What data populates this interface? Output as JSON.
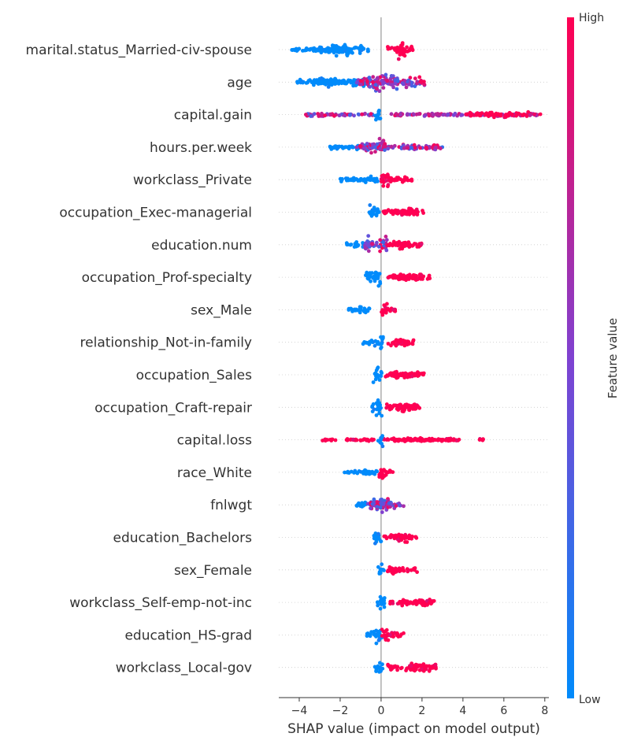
{
  "chart_data": {
    "type": "scatter",
    "subtype": "shap_beeswarm_summary",
    "title": "",
    "xlabel": "SHAP value (impact on model output)",
    "ylabel": "",
    "xlim": [
      -5,
      8.2
    ],
    "xticks": [
      -4,
      -2,
      0,
      2,
      4,
      6,
      8
    ],
    "xtick_labels": [
      "−4",
      "−2",
      "0",
      "2",
      "4",
      "6",
      "8"
    ],
    "grid": false,
    "colorbar": {
      "title": "Feature value",
      "high_label": "High",
      "low_label": "Low",
      "low_color": "#008bfb",
      "mid_color": "#7f42d1",
      "high_color": "#ff0052"
    },
    "features": [
      {
        "name": "marital.status_Married-civ-spouse",
        "segments": [
          {
            "from": -4.4,
            "to": -1.4,
            "mode": "low",
            "thick": 0.2
          },
          {
            "from": -3.0,
            "to": -0.6,
            "mode": "low",
            "thick": 0.42
          },
          {
            "from": -2.2,
            "to": -1.6,
            "mode": "low",
            "thick": 0.7
          },
          {
            "from": 0.3,
            "to": 1.6,
            "mode": "high",
            "thick": 0.3
          },
          {
            "from": 0.75,
            "to": 1.2,
            "mode": "high",
            "thick": 0.85
          }
        ]
      },
      {
        "name": "age",
        "segments": [
          {
            "from": -4.1,
            "to": -1.6,
            "mode": "low",
            "thick": 0.22
          },
          {
            "from": -3.3,
            "to": -0.6,
            "mode": "low",
            "thick": 0.45
          },
          {
            "from": -1.2,
            "to": -0.1,
            "mode": "mix",
            "thick": 0.55
          },
          {
            "from": -0.4,
            "to": 0.8,
            "mode": "mix",
            "thick": 0.9
          },
          {
            "from": 0.4,
            "to": 2.2,
            "mode": "mix",
            "thick": 0.45
          }
        ]
      },
      {
        "name": "capital.gain",
        "segments": [
          {
            "from": -3.7,
            "to": -0.4,
            "mode": "mix",
            "thick": 0.15
          },
          {
            "from": -0.3,
            "to": 0.0,
            "mode": "low",
            "thick": 0.85
          },
          {
            "from": 0.3,
            "to": 7.8,
            "mode": "mixhigh",
            "thick": 0.15
          },
          {
            "from": 4.2,
            "to": 7.2,
            "mode": "high",
            "thick": 0.24
          }
        ]
      },
      {
        "name": "hours.per.week",
        "segments": [
          {
            "from": -2.5,
            "to": -0.5,
            "mode": "low",
            "thick": 0.22
          },
          {
            "from": -1.2,
            "to": 0.2,
            "mode": "mix",
            "thick": 0.4
          },
          {
            "from": -0.5,
            "to": 0.2,
            "mode": "mix",
            "thick": 0.75
          },
          {
            "from": 0.2,
            "to": 3.0,
            "mode": "mix",
            "thick": 0.3
          }
        ]
      },
      {
        "name": "workclass_Private",
        "segments": [
          {
            "from": -2.0,
            "to": -0.3,
            "mode": "low",
            "thick": 0.22
          },
          {
            "from": -0.8,
            "to": -0.1,
            "mode": "low",
            "thick": 0.32
          },
          {
            "from": 0.0,
            "to": 0.5,
            "mode": "high",
            "thick": 0.8
          },
          {
            "from": 0.3,
            "to": 1.5,
            "mode": "high",
            "thick": 0.22
          }
        ]
      },
      {
        "name": "occupation_Exec-managerial",
        "segments": [
          {
            "from": -0.6,
            "to": -0.1,
            "mode": "low",
            "thick": 0.72
          },
          {
            "from": 0.1,
            "to": 2.1,
            "mode": "high",
            "thick": 0.25
          },
          {
            "from": 0.8,
            "to": 1.8,
            "mode": "high",
            "thick": 0.38
          }
        ]
      },
      {
        "name": "education.num",
        "segments": [
          {
            "from": -1.7,
            "to": -0.6,
            "mode": "low",
            "thick": 0.25
          },
          {
            "from": -0.8,
            "to": 0.3,
            "mode": "mix",
            "thick": 0.85
          },
          {
            "from": 0.3,
            "to": 2.0,
            "mode": "high",
            "thick": 0.3
          },
          {
            "from": 0.8,
            "to": 1.5,
            "mode": "high",
            "thick": 0.4
          }
        ]
      },
      {
        "name": "occupation_Prof-specialty",
        "segments": [
          {
            "from": -0.75,
            "to": -0.1,
            "mode": "low",
            "thick": 0.55
          },
          {
            "from": -0.35,
            "to": 0.0,
            "mode": "low",
            "thick": 0.85
          },
          {
            "from": 0.3,
            "to": 2.4,
            "mode": "high",
            "thick": 0.28
          },
          {
            "from": 0.8,
            "to": 2.0,
            "mode": "high",
            "thick": 0.42
          }
        ]
      },
      {
        "name": "sex_Male",
        "segments": [
          {
            "from": -1.6,
            "to": -0.5,
            "mode": "low",
            "thick": 0.2
          },
          {
            "from": -1.1,
            "to": -0.6,
            "mode": "low",
            "thick": 0.3
          },
          {
            "from": 0.0,
            "to": 0.35,
            "mode": "high",
            "thick": 0.85
          },
          {
            "from": 0.3,
            "to": 0.75,
            "mode": "high",
            "thick": 0.28
          }
        ]
      },
      {
        "name": "relationship_Not-in-family",
        "segments": [
          {
            "from": -0.9,
            "to": -0.1,
            "mode": "low",
            "thick": 0.3
          },
          {
            "from": -0.2,
            "to": 0.1,
            "mode": "low",
            "thick": 0.8
          },
          {
            "from": 0.25,
            "to": 1.6,
            "mode": "high",
            "thick": 0.28
          },
          {
            "from": 0.7,
            "to": 1.3,
            "mode": "high",
            "thick": 0.4
          }
        ]
      },
      {
        "name": "occupation_Sales",
        "segments": [
          {
            "from": -0.4,
            "to": 0.05,
            "mode": "low",
            "thick": 0.75
          },
          {
            "from": 0.2,
            "to": 2.1,
            "mode": "high",
            "thick": 0.25
          },
          {
            "from": 0.6,
            "to": 1.8,
            "mode": "high",
            "thick": 0.42
          }
        ]
      },
      {
        "name": "occupation_Craft-repair",
        "segments": [
          {
            "from": -0.45,
            "to": 0.05,
            "mode": "low",
            "thick": 0.8
          },
          {
            "from": 0.25,
            "to": 2.0,
            "mode": "high",
            "thick": 0.25
          },
          {
            "from": 0.7,
            "to": 1.7,
            "mode": "high",
            "thick": 0.42
          }
        ]
      },
      {
        "name": "capital.loss",
        "segments": [
          {
            "from": -2.9,
            "to": 3.9,
            "mode": "high",
            "thick": 0.12
          },
          {
            "from": 0.6,
            "to": 3.7,
            "mode": "high",
            "thick": 0.18
          },
          {
            "from": -0.15,
            "to": 0.08,
            "mode": "low",
            "thick": 0.85
          },
          {
            "from": 4.75,
            "to": 4.85,
            "mode": "high",
            "thick": 0.12
          },
          {
            "from": 4.95,
            "to": 5.05,
            "mode": "high",
            "thick": 0.12
          }
        ]
      },
      {
        "name": "race_White",
        "segments": [
          {
            "from": -1.8,
            "to": -0.2,
            "mode": "low",
            "thick": 0.2
          },
          {
            "from": -0.9,
            "to": -0.2,
            "mode": "low",
            "thick": 0.28
          },
          {
            "from": -0.1,
            "to": 0.25,
            "mode": "high",
            "thick": 0.85
          },
          {
            "from": 0.2,
            "to": 0.6,
            "mode": "high",
            "thick": 0.25
          }
        ]
      },
      {
        "name": "fnlwgt",
        "segments": [
          {
            "from": -1.3,
            "to": -0.2,
            "mode": "low",
            "thick": 0.3
          },
          {
            "from": -0.7,
            "to": 0.2,
            "mode": "mix",
            "thick": 0.62
          },
          {
            "from": -0.2,
            "to": 0.35,
            "mode": "mix",
            "thick": 0.88
          },
          {
            "from": 0.2,
            "to": 1.1,
            "mode": "mix",
            "thick": 0.3
          }
        ]
      },
      {
        "name": "education_Bachelors",
        "segments": [
          {
            "from": -0.4,
            "to": 0.05,
            "mode": "low",
            "thick": 0.72
          },
          {
            "from": 0.1,
            "to": 1.8,
            "mode": "high",
            "thick": 0.25
          },
          {
            "from": 0.6,
            "to": 1.4,
            "mode": "high",
            "thick": 0.4
          }
        ]
      },
      {
        "name": "sex_Female",
        "segments": [
          {
            "from": -0.15,
            "to": 0.15,
            "mode": "low",
            "thick": 0.82
          },
          {
            "from": 0.25,
            "to": 1.8,
            "mode": "high",
            "thick": 0.25
          },
          {
            "from": 0.35,
            "to": 0.8,
            "mode": "high",
            "thick": 0.45
          }
        ]
      },
      {
        "name": "workclass_Self-emp-not-inc",
        "segments": [
          {
            "from": -0.2,
            "to": 0.3,
            "mode": "low",
            "thick": 0.82
          },
          {
            "from": 0.4,
            "to": 2.6,
            "mode": "high",
            "thick": 0.22
          },
          {
            "from": 1.0,
            "to": 2.4,
            "mode": "high",
            "thick": 0.35
          }
        ]
      },
      {
        "name": "education_HS-grad",
        "segments": [
          {
            "from": -0.8,
            "to": -0.1,
            "mode": "low",
            "thick": 0.3
          },
          {
            "from": -0.25,
            "to": 0.1,
            "mode": "low",
            "thick": 0.82
          },
          {
            "from": 0.0,
            "to": 0.4,
            "mode": "high",
            "thick": 0.65
          },
          {
            "from": 0.3,
            "to": 1.1,
            "mode": "high",
            "thick": 0.28
          }
        ]
      },
      {
        "name": "workclass_Local-gov",
        "segments": [
          {
            "from": -0.4,
            "to": 0.1,
            "mode": "low",
            "thick": 0.7
          },
          {
            "from": 0.3,
            "to": 2.7,
            "mode": "high",
            "thick": 0.25
          },
          {
            "from": 1.2,
            "to": 2.5,
            "mode": "high",
            "thick": 0.45
          }
        ]
      }
    ]
  }
}
